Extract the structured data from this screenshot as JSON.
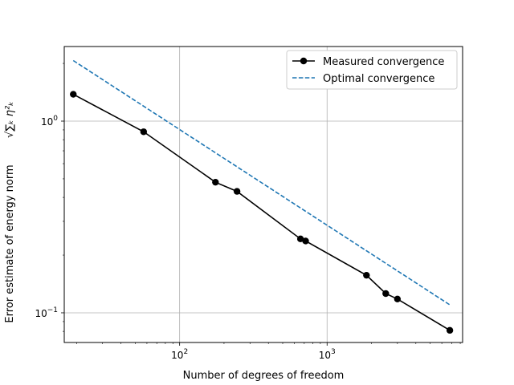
{
  "chart_data": {
    "type": "line",
    "title": "",
    "xlabel": "Number of degrees of freedom",
    "ylabel": "Error estimate of energy norm",
    "ylabel_math": "√∑ₖ η²ₖ",
    "xscale": "log",
    "yscale": "log",
    "xlim": [
      16.5,
      8300
    ],
    "ylim": [
      0.07,
      2.45
    ],
    "xticks": [
      {
        "value": 100,
        "base": "10",
        "exp": "2"
      },
      {
        "value": 1000,
        "base": "10",
        "exp": "3"
      }
    ],
    "yticks": [
      {
        "value": 0.1,
        "base": "10",
        "exp": "−1"
      },
      {
        "value": 1,
        "base": "10",
        "exp": "0"
      }
    ],
    "grid": true,
    "legend_position": "top-right",
    "series": [
      {
        "name": "Measured convergence",
        "style": "solid-marker",
        "color": "#000000",
        "points": [
          {
            "x": 19,
            "y": 1.38
          },
          {
            "x": 57,
            "y": 0.88
          },
          {
            "x": 175,
            "y": 0.48
          },
          {
            "x": 245,
            "y": 0.43
          },
          {
            "x": 660,
            "y": 0.243
          },
          {
            "x": 715,
            "y": 0.237
          },
          {
            "x": 1850,
            "y": 0.157
          },
          {
            "x": 2500,
            "y": 0.126
          },
          {
            "x": 3000,
            "y": 0.118
          },
          {
            "x": 6800,
            "y": 0.081
          }
        ]
      },
      {
        "name": "Optimal convergence",
        "style": "dashed",
        "color": "#1f77b4",
        "points": [
          {
            "x": 19,
            "y": 2.07
          },
          {
            "x": 6800,
            "y": 0.11
          }
        ]
      }
    ]
  }
}
